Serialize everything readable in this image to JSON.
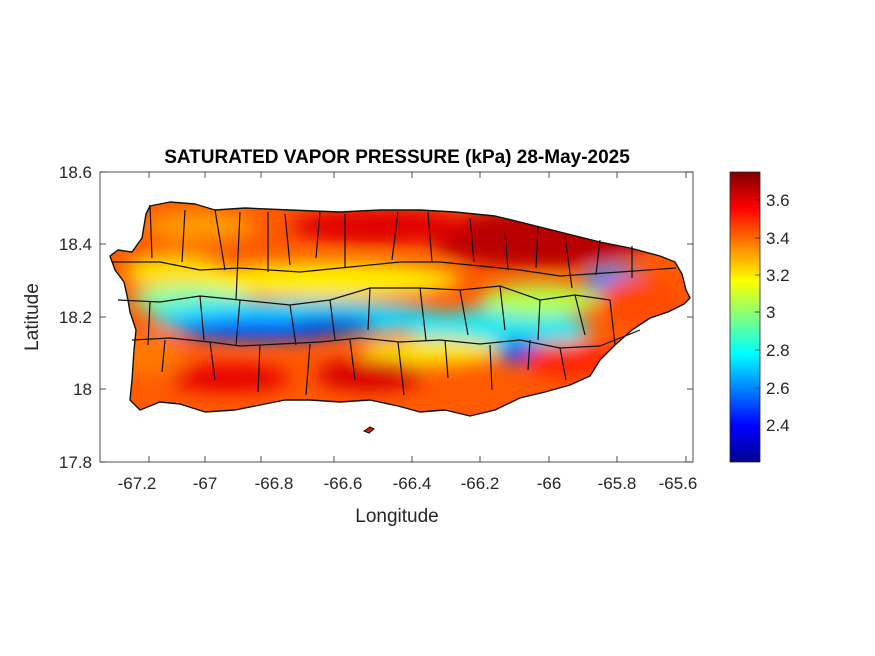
{
  "figure": {
    "title": "SATURATED VAPOR PRESSURE (kPa) 28-May-2025",
    "xlabel": "Longitude",
    "ylabel": "Latitude",
    "xticks": [
      "-67.2",
      "-67",
      "-66.8",
      "-66.6",
      "-66.4",
      "-66.2",
      "-66",
      "-65.8",
      "-65.6"
    ],
    "yticks": [
      "18.6",
      "18.4",
      "18.2",
      "18",
      "17.8"
    ],
    "colorbar_ticks": [
      "3.6",
      "3.4",
      "3.2",
      "3",
      "2.8",
      "2.6",
      "2.4"
    ],
    "colormap": "jet",
    "colors": {
      "low": "#00008f",
      "mid": "#80ff80",
      "high": "#800000",
      "border": "#111111"
    }
  },
  "chart_data": {
    "type": "heatmap",
    "title": "SATURATED VAPOR PRESSURE (kPa) 28-May-2025",
    "xlabel": "Longitude",
    "ylabel": "Latitude",
    "xlim": [
      -67.3,
      -65.58
    ],
    "ylim": [
      17.8,
      18.6
    ],
    "clim": [
      2.22,
      3.77
    ],
    "colorbar_label": "",
    "regions": [
      {
        "name": "",
        "lon": -66.95,
        "lat": 18.13,
        "value": 2.5
      },
      {
        "name": "",
        "lon": -66.75,
        "lat": 18.13,
        "value": 2.45
      },
      {
        "name": "",
        "lon": -66.55,
        "lat": 18.16,
        "value": 2.6
      },
      {
        "name": "",
        "lon": -66.05,
        "lat": 18.1,
        "value": 2.5
      },
      {
        "name": "",
        "lon": -65.82,
        "lat": 18.29,
        "value": 2.8
      },
      {
        "name": "",
        "lon": -66.05,
        "lat": 18.42,
        "value": 3.75
      },
      {
        "name": "",
        "lon": -66.55,
        "lat": 18.03,
        "value": 3.7
      },
      {
        "name": "",
        "lon": -66.9,
        "lat": 18.45,
        "value": 3.5
      }
    ]
  }
}
